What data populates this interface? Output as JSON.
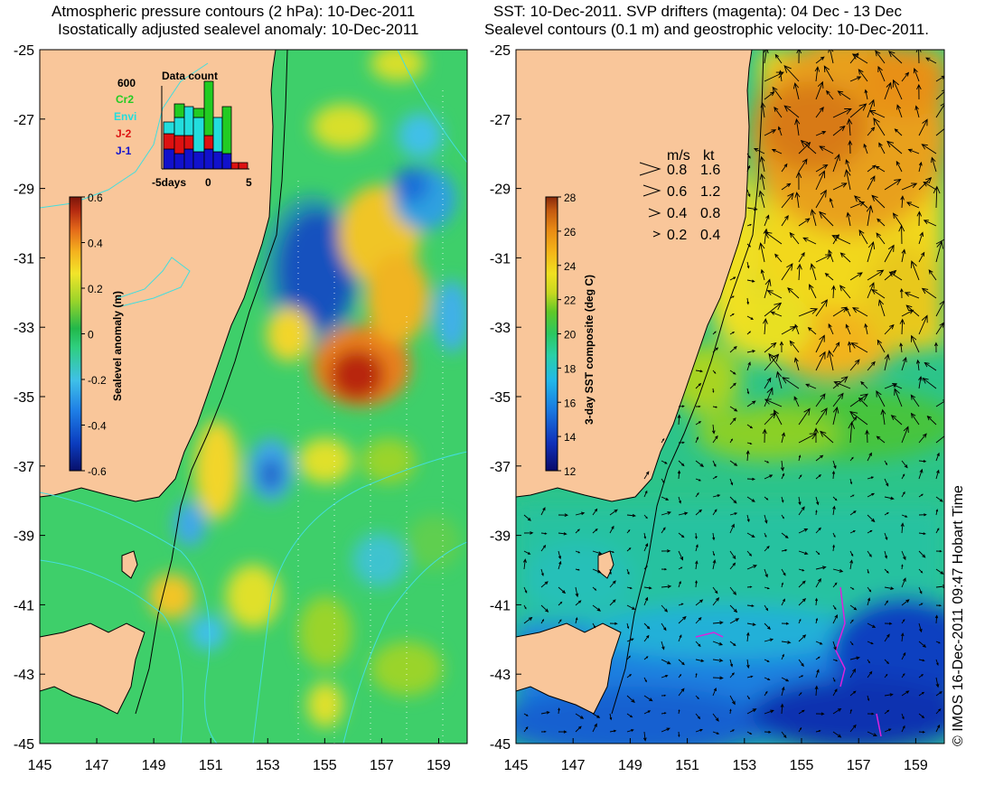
{
  "left_panel": {
    "title_line1": "Atmospheric pressure contours (2 hPa): 10-Dec-2011",
    "title_line2": "Isostatically adjusted sealevel anomaly: 10-Dec-2011",
    "colorbar": {
      "label": "Sealevel anomaly (m)",
      "ticks": [
        "0.6",
        "0.4",
        "0.2",
        "0",
        "-0.2",
        "-0.4",
        "-0.6"
      ],
      "colors": [
        "#08106b",
        "#0b3dbf",
        "#1e7fe6",
        "#3fc0e8",
        "#3ed07a",
        "#22b84a",
        "#9ad42a",
        "#f2e52a",
        "#f5b21e",
        "#e46a1a",
        "#b52a10",
        "#7a160a"
      ]
    },
    "data_count": {
      "title": "Data count",
      "y_max_label": "600",
      "x_labels": [
        "-5days",
        "0",
        "5"
      ],
      "legend": [
        {
          "name": "Cr2",
          "color": "#22cc22"
        },
        {
          "name": "Envi",
          "color": "#22dddd"
        },
        {
          "name": "J-2",
          "color": "#dd1111"
        },
        {
          "name": "J-1",
          "color": "#1111cc"
        }
      ]
    }
  },
  "right_panel": {
    "title_line1": "SST: 10-Dec-2011. SVP drifters (magenta): 04 Dec - 13 Dec",
    "title_line2": "Sealevel contours (0.1 m) and geostrophic velocity: 10-Dec-2011.",
    "colorbar": {
      "label": "3-day SST composite (deg C)",
      "ticks": [
        "28",
        "26",
        "24",
        "22",
        "20",
        "18",
        "16",
        "14",
        "12"
      ],
      "colors": [
        "#0a0a6a",
        "#1030b8",
        "#1a78e0",
        "#22b8e8",
        "#2ad0a8",
        "#2cc860",
        "#36c030",
        "#9ad020",
        "#f0e020",
        "#f4b418",
        "#e88a14",
        "#c45a10",
        "#8a2a0a"
      ]
    },
    "vector_legend": {
      "header_ms": "m/s",
      "header_kt": "kt",
      "rows": [
        {
          "ms": "0.8",
          "kt": "1.6"
        },
        {
          "ms": "0.6",
          "kt": "1.2"
        },
        {
          "ms": "0.4",
          "kt": "0.8"
        },
        {
          "ms": "0.2",
          "kt": "0.4"
        }
      ]
    }
  },
  "axes": {
    "x_ticks": [
      "145",
      "147",
      "149",
      "151",
      "153",
      "155",
      "157",
      "159"
    ],
    "y_ticks": [
      "-25",
      "-27",
      "-29",
      "-31",
      "-33",
      "-35",
      "-37",
      "-39",
      "-41",
      "-43",
      "-45"
    ]
  },
  "credit": "© IMOS 16-Dec-2011 09:47 Hobart Time",
  "colors": {
    "land": "#f9c69a",
    "coast": "#000000",
    "contour_cyan": "#44dddd"
  }
}
